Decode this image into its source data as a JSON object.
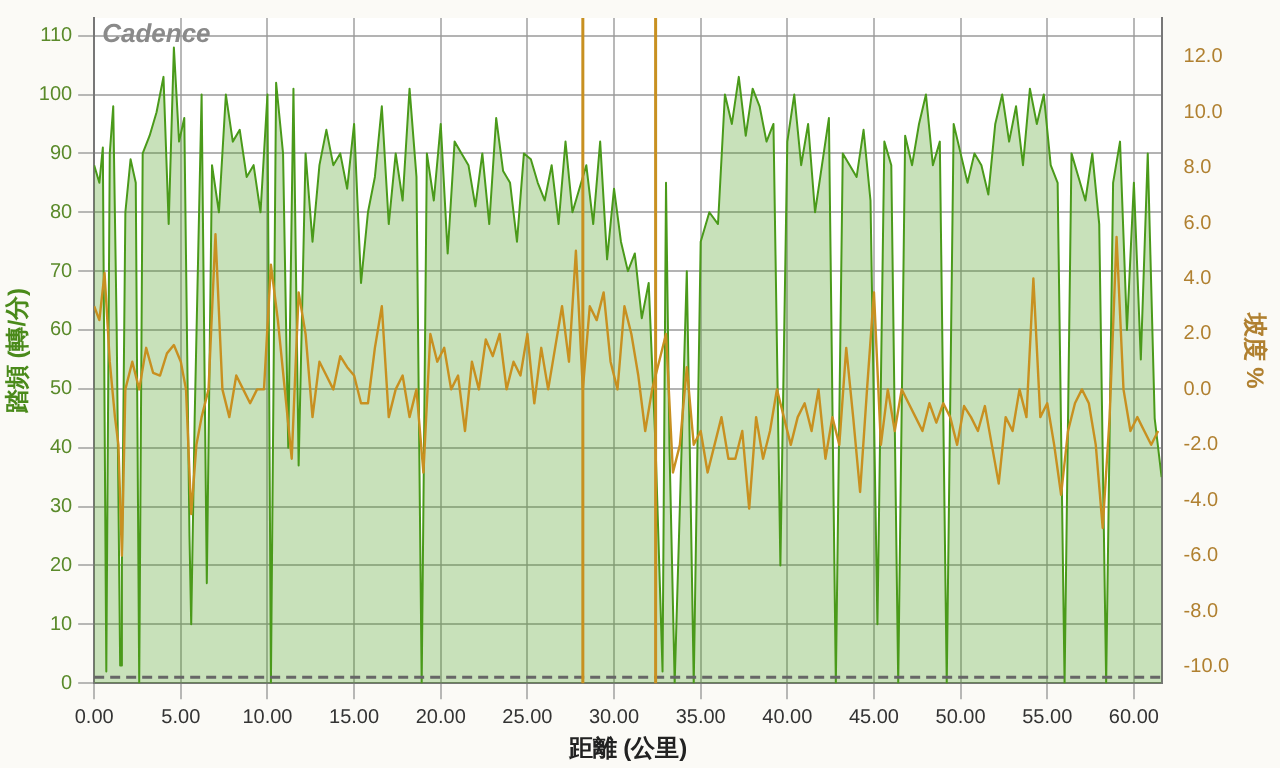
{
  "chart_data": {
    "type": "area",
    "title": "Cadence",
    "xlabel": "距離 (公里)",
    "ylabel": "踏頻 (轉/分)",
    "y2label": "坡度 %",
    "xlim": [
      0,
      61.6
    ],
    "xticks": [
      {
        "value": 0,
        "label": "0.00"
      },
      {
        "value": 5,
        "label": "5.00"
      },
      {
        "value": 10,
        "label": "10.00"
      },
      {
        "value": 15,
        "label": "15.00"
      },
      {
        "value": 20,
        "label": "20.00"
      },
      {
        "value": 25,
        "label": "25.00"
      },
      {
        "value": 30,
        "label": "30.00"
      },
      {
        "value": 35,
        "label": "35.00"
      },
      {
        "value": 40,
        "label": "40.00"
      },
      {
        "value": 45,
        "label": "45.00"
      },
      {
        "value": 50,
        "label": "50.00"
      },
      {
        "value": 55,
        "label": "55.00"
      },
      {
        "value": 60,
        "label": "60.00"
      }
    ],
    "ylim": [
      0,
      113
    ],
    "yticks": [
      0,
      10,
      20,
      30,
      40,
      50,
      60,
      70,
      80,
      90,
      100,
      110
    ],
    "y2lim": [
      -10.6,
      13.4
    ],
    "y2ticks": [
      {
        "value": -10,
        "label": "-10.0"
      },
      {
        "value": -8,
        "label": "-8.0"
      },
      {
        "value": -6,
        "label": "-6.0"
      },
      {
        "value": -4,
        "label": "-4.0"
      },
      {
        "value": -2,
        "label": "-2.0"
      },
      {
        "value": 0,
        "label": "0.0"
      },
      {
        "value": 2,
        "label": "2.0"
      },
      {
        "value": 4,
        "label": "4.0"
      },
      {
        "value": 6,
        "label": "6.0"
      },
      {
        "value": 8,
        "label": "8.0"
      },
      {
        "value": 10,
        "label": "10.0"
      },
      {
        "value": 12,
        "label": "12.0"
      }
    ],
    "grid": true,
    "legend": false,
    "marker": "none",
    "ref_lines": [
      {
        "axis": "y",
        "value": 1,
        "color": "#666666",
        "line_style": "dashed"
      },
      {
        "axis": "x",
        "value": 28.2,
        "color": "#c89020"
      },
      {
        "axis": "x",
        "value": 32.4,
        "color": "#c89020"
      }
    ],
    "series": [
      {
        "type": "area",
        "color": "#4a9a1a",
        "x": [
          0,
          0.3,
          0.5,
          0.7,
          0.9,
          1.1,
          1.3,
          1.5,
          1.6,
          1.8,
          2.1,
          2.4,
          2.6,
          2.8,
          3.2,
          3.6,
          4,
          4.3,
          4.6,
          4.9,
          5.2,
          5.5,
          5.6,
          5.8,
          6.2,
          6.5,
          6.8,
          7.2,
          7.6,
          8,
          8.4,
          8.8,
          9.2,
          9.6,
          10,
          10.2,
          10.5,
          10.9,
          11.2,
          11.5,
          11.8,
          12.2,
          12.6,
          13,
          13.4,
          13.8,
          14.2,
          14.6,
          15,
          15.4,
          15.8,
          16.2,
          16.6,
          17,
          17.4,
          17.8,
          18.2,
          18.6,
          18.9,
          19.2,
          19.6,
          20,
          20.4,
          20.8,
          21.2,
          21.6,
          22,
          22.4,
          22.8,
          23.2,
          23.6,
          24,
          24.4,
          24.8,
          25.2,
          25.6,
          26,
          26.4,
          26.8,
          27.2,
          27.6,
          28,
          28.4,
          28.8,
          29.2,
          29.6,
          30,
          30.4,
          30.8,
          31.2,
          31.6,
          32,
          32.4,
          32.8,
          33,
          33.2,
          33.5,
          33.8,
          34.2,
          34.6,
          35,
          35.5,
          36,
          36.4,
          36.8,
          37.2,
          37.6,
          38,
          38.4,
          38.8,
          39.2,
          39.6,
          40,
          40.4,
          40.8,
          41.2,
          41.6,
          42,
          42.4,
          42.8,
          43.2,
          43.6,
          44,
          44.4,
          44.8,
          45.2,
          45.6,
          46,
          46.4,
          46.8,
          47.2,
          47.6,
          48,
          48.4,
          48.8,
          49.2,
          49.6,
          50,
          50.4,
          50.8,
          51.2,
          51.6,
          52,
          52.4,
          52.8,
          53.2,
          53.6,
          54,
          54.4,
          54.8,
          55.2,
          55.6,
          56,
          56.4,
          56.8,
          57.2,
          57.6,
          58,
          58.4,
          58.8,
          59.2,
          59.6,
          60,
          60.4,
          60.8,
          61.2,
          61.6
        ],
        "values": [
          88,
          85,
          91,
          2,
          90,
          98,
          60,
          3,
          20,
          80,
          89,
          85,
          0,
          90,
          93,
          97,
          103,
          78,
          108,
          92,
          96,
          25,
          10,
          45,
          100,
          17,
          88,
          80,
          100,
          92,
          94,
          86,
          88,
          80,
          100,
          0,
          102,
          90,
          40,
          101,
          37,
          90,
          75,
          88,
          94,
          88,
          90,
          84,
          95,
          68,
          80,
          86,
          98,
          78,
          90,
          82,
          101,
          86,
          0,
          90,
          82,
          95,
          73,
          92,
          90,
          88,
          81,
          90,
          78,
          96,
          87,
          85,
          75,
          90,
          89,
          85,
          82,
          88,
          78,
          92,
          80,
          84,
          88,
          78,
          92,
          72,
          84,
          75,
          70,
          73,
          62,
          68,
          40,
          2,
          85,
          40,
          0,
          30,
          70,
          0,
          75,
          80,
          78,
          100,
          95,
          103,
          93,
          101,
          98,
          92,
          95,
          20,
          92,
          100,
          88,
          95,
          80,
          88,
          96,
          0,
          90,
          88,
          86,
          94,
          82,
          10,
          92,
          88,
          0,
          93,
          88,
          95,
          100,
          88,
          92,
          0,
          95,
          90,
          85,
          90,
          88,
          83,
          95,
          100,
          92,
          98,
          88,
          101,
          95,
          100,
          88,
          85,
          0,
          90,
          86,
          82,
          90,
          78,
          0,
          85,
          92,
          60,
          85,
          55,
          90,
          45,
          35
        ]
      },
      {
        "type": "line",
        "axis": "y2",
        "color": "#c89020",
        "x": [
          0,
          0.3,
          0.6,
          0.9,
          1.2,
          1.4,
          1.6,
          1.8,
          2.2,
          2.6,
          3,
          3.4,
          3.8,
          4.2,
          4.6,
          5,
          5.3,
          5.6,
          5.9,
          6.2,
          6.6,
          7,
          7.4,
          7.8,
          8.2,
          8.6,
          9,
          9.4,
          9.8,
          10.2,
          10.6,
          11,
          11.4,
          11.8,
          12.2,
          12.6,
          13,
          13.4,
          13.8,
          14.2,
          14.6,
          15,
          15.4,
          15.8,
          16.2,
          16.6,
          17,
          17.4,
          17.8,
          18.2,
          18.6,
          19,
          19.4,
          19.8,
          20.2,
          20.6,
          21,
          21.4,
          21.8,
          22.2,
          22.6,
          23,
          23.4,
          23.8,
          24.2,
          24.6,
          25,
          25.4,
          25.8,
          26.2,
          26.6,
          27,
          27.4,
          27.8,
          28.2,
          28.6,
          29,
          29.4,
          29.8,
          30.2,
          30.6,
          31,
          31.4,
          31.8,
          32.2,
          32.6,
          33,
          33.4,
          33.8,
          34.2,
          34.6,
          35,
          35.4,
          35.8,
          36.2,
          36.6,
          37,
          37.4,
          37.8,
          38.2,
          38.6,
          39,
          39.4,
          39.8,
          40.2,
          40.6,
          41,
          41.4,
          41.8,
          42.2,
          42.6,
          43,
          43.4,
          43.8,
          44.2,
          44.6,
          45,
          45.4,
          45.8,
          46.2,
          46.6,
          47,
          47.4,
          47.8,
          48.2,
          48.6,
          49,
          49.4,
          49.8,
          50.2,
          50.6,
          51,
          51.4,
          51.8,
          52.2,
          52.6,
          53,
          53.4,
          53.8,
          54.2,
          54.6,
          55,
          55.4,
          55.8,
          56.2,
          56.6,
          57,
          57.4,
          57.8,
          58.2,
          58.6,
          59,
          59.4,
          59.8,
          60.2,
          60.6,
          61,
          61.4
        ],
        "values": [
          3,
          2.5,
          4.2,
          1,
          -1,
          -2,
          -6,
          0,
          1,
          0,
          1.5,
          0.6,
          0.5,
          1.3,
          1.6,
          1,
          0,
          -4.5,
          -2,
          -1,
          0,
          5.6,
          0,
          -1,
          0.5,
          0,
          -0.5,
          0,
          0,
          4.5,
          2.5,
          0,
          -2.5,
          3.5,
          2,
          -1,
          1,
          0.5,
          0,
          1.2,
          0.8,
          0.5,
          -0.5,
          -0.5,
          1.5,
          3,
          -1,
          0,
          0.5,
          -1,
          0,
          -3,
          2,
          1,
          1.5,
          0,
          0.5,
          -1.5,
          1,
          0,
          1.8,
          1.2,
          2,
          0,
          1,
          0.5,
          2,
          -0.5,
          1.5,
          0,
          1.5,
          3,
          1,
          5,
          0,
          3,
          2.5,
          3.5,
          1,
          0,
          3,
          2,
          0.5,
          -1.5,
          0,
          1,
          2,
          -3,
          -2,
          0.8,
          -2,
          -1.5,
          -3,
          -2,
          -1,
          -2.5,
          -2.5,
          -1.5,
          -4.3,
          -1,
          -2.5,
          -1.5,
          0,
          -1,
          -2,
          -1,
          -0.5,
          -1.5,
          0,
          -2.5,
          -1,
          -2,
          1.5,
          -1,
          -3.7,
          0,
          3.5,
          -2,
          0,
          -1.5,
          0,
          -0.5,
          -1,
          -1.5,
          -0.5,
          -1.2,
          -0.5,
          -1,
          -2,
          -0.6,
          -1,
          -1.5,
          -0.6,
          -2,
          -3.4,
          -1,
          -1.5,
          0,
          -1,
          4,
          -1,
          -0.5,
          -2,
          -3.8,
          -1.5,
          -0.5,
          0,
          -0.5,
          -2,
          -5,
          -1,
          5.5,
          0,
          -1.5,
          -1,
          -1.5,
          -2,
          -1.5
        ]
      }
    ]
  }
}
